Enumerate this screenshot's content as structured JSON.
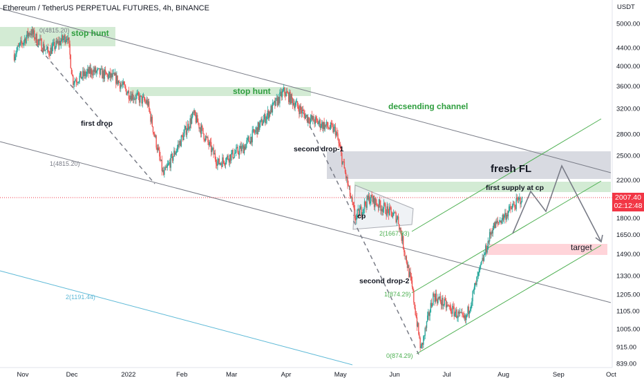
{
  "header": {
    "title": "Ethereum / TetherUS PERPETUAL FUTURES, 4h, BINANCE"
  },
  "price_axis": {
    "unit": "USDT",
    "ticks": [
      "5000.00",
      "4400.00",
      "4000.00",
      "3600.00",
      "3200.00",
      "2800.00",
      "2500.00",
      "2200.00",
      "1800.00",
      "1650.00",
      "1490.00",
      "1330.00",
      "1205.00",
      "1105.00",
      "1005.00",
      "915.00",
      "839.00"
    ]
  },
  "last_price": {
    "value": "2007.40",
    "countdown": "02:12:48",
    "color": "#f23645"
  },
  "colors": {
    "bull": "#26a69a",
    "bear": "#ef5350",
    "green_zone": "#c8e6c9",
    "red_zone": "#ffcdd2",
    "gray_zone": "#d1d4dc",
    "green_text": "#2e9e3e",
    "channel_line": "#787b86",
    "fib_blue": "#5bb8d6"
  },
  "chart_data": {
    "type": "candlestick",
    "symbol": "ETHUSDT Perpetual",
    "interval": "4h",
    "exchange": "BINANCE",
    "x_ticks": [
      "Nov",
      "Dec",
      "2022",
      "Feb",
      "Mar",
      "Apr",
      "May",
      "Jun",
      "Jul",
      "Aug",
      "Sep",
      "Oct"
    ],
    "y_scale": "log",
    "y_range": [
      839,
      5000
    ],
    "path_anchors": [
      {
        "date": "2021-11-01",
        "price": 4250
      },
      {
        "date": "2021-11-10",
        "price": 4800
      },
      {
        "date": "2021-11-20",
        "price": 4300
      },
      {
        "date": "2021-12-01",
        "price": 4700
      },
      {
        "date": "2021-12-04",
        "price": 3700
      },
      {
        "date": "2021-12-15",
        "price": 3900
      },
      {
        "date": "2021-12-28",
        "price": 3750
      },
      {
        "date": "2022-01-05",
        "price": 3450
      },
      {
        "date": "2022-01-15",
        "price": 3300
      },
      {
        "date": "2022-01-24",
        "price": 2250
      },
      {
        "date": "2022-02-10",
        "price": 3100
      },
      {
        "date": "2022-02-24",
        "price": 2400
      },
      {
        "date": "2022-03-10",
        "price": 2600
      },
      {
        "date": "2022-04-02",
        "price": 3500
      },
      {
        "date": "2022-04-15",
        "price": 3050
      },
      {
        "date": "2022-05-01",
        "price": 2850
      },
      {
        "date": "2022-05-12",
        "price": 1800
      },
      {
        "date": "2022-05-20",
        "price": 2000
      },
      {
        "date": "2022-06-05",
        "price": 1800
      },
      {
        "date": "2022-06-13",
        "price": 1250
      },
      {
        "date": "2022-06-18",
        "price": 900
      },
      {
        "date": "2022-06-25",
        "price": 1200
      },
      {
        "date": "2022-07-13",
        "price": 1050
      },
      {
        "date": "2022-07-28",
        "price": 1700
      },
      {
        "date": "2022-08-14",
        "price": 2007
      }
    ],
    "last_close": 2007.4
  },
  "annotations": {
    "stop_hunt_1": "stop hunt",
    "stop_hunt_2": "stop hunt",
    "descending_channel": "decsending channel",
    "first_drop": "first drop",
    "second_drop_1": "second drop-1",
    "second_drop_2": "second drop-2",
    "cp": "cp",
    "fresh_fl": "fresh FL",
    "first_supply": "first supply at cp",
    "target": "target",
    "fib_0_top": "0(4815.20)",
    "fib_1_top": "1(4815.20)",
    "fib_2_blue": "2(1191.44)",
    "fib_2_green": "2(1667.93)",
    "fib_1_green": "1(874.29)",
    "fib_0_green": "0(874.29)"
  }
}
